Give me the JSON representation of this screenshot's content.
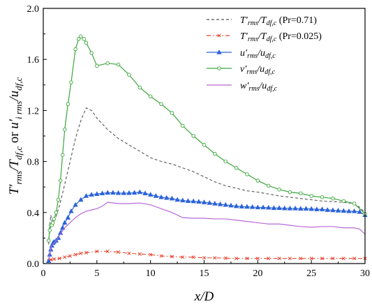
{
  "chart_data": {
    "type": "line",
    "xlabel": "x/D",
    "ylabel": "T'rms/Tdf,c or u'i rms/udf,c",
    "xlim": [
      0,
      30
    ],
    "ylim": [
      0,
      2.0
    ],
    "xticks": [
      0,
      5,
      10,
      15,
      20,
      25,
      30
    ],
    "xtick_labels": [
      "0",
      "5",
      "10",
      "15",
      "20",
      "25",
      "30"
    ],
    "yticks": [
      0,
      0.4,
      0.8,
      1.2,
      1.6,
      2.0
    ],
    "ytick_labels": [
      "0.0",
      "0.4",
      "0.8",
      "1.2",
      "1.6",
      "2.0"
    ],
    "grid": false,
    "legend_position": "top-right",
    "series": [
      {
        "name": "T'rms/Tdf,c (Pr=0.71)",
        "legend": {
          "main": "T′",
          "sub1": "rms",
          "mid": "/T",
          "sub2": "df,c",
          "suffix": " (Pr=0.71)"
        },
        "color": "#555555",
        "line": "dashed",
        "marker": "none",
        "x": [
          0.5,
          0.6,
          0.7,
          0.8,
          0.9,
          1.0,
          1.2,
          1.5,
          2.0,
          2.5,
          3.0,
          3.5,
          4.0,
          4.5,
          5.0,
          6.0,
          7.0,
          8.0,
          9.0,
          10.0,
          11.0,
          12.0,
          13.0,
          14.0,
          15.0,
          16.0,
          17.0,
          18.0,
          19.0,
          20.0,
          22.0,
          24.0,
          26.0,
          28.0,
          29.0,
          29.5,
          30.0
        ],
        "y": [
          0.15,
          0.3,
          0.38,
          0.34,
          0.3,
          0.33,
          0.37,
          0.45,
          0.62,
          0.8,
          0.98,
          1.12,
          1.22,
          1.2,
          1.14,
          1.05,
          0.98,
          0.93,
          0.88,
          0.83,
          0.8,
          0.78,
          0.75,
          0.72,
          0.68,
          0.64,
          0.61,
          0.59,
          0.57,
          0.56,
          0.53,
          0.51,
          0.49,
          0.48,
          0.47,
          0.44,
          0.4
        ]
      },
      {
        "name": "T'rms/Tdf,c (Pr=0.025)",
        "legend": {
          "main": "T′",
          "sub1": "rms",
          "mid": "/T",
          "sub2": "df,c",
          "suffix": " (Pr=0.025)"
        },
        "color": "#e8442e",
        "line": "dashdot",
        "marker": "x",
        "x": [
          0.5,
          0.7,
          1.0,
          1.5,
          2.0,
          2.5,
          3.0,
          3.5,
          4.0,
          5.0,
          6.0,
          7.0,
          8.0,
          9.0,
          10.0,
          11.0,
          12.0,
          13.0,
          14.0,
          15.0,
          16.0,
          17.0,
          18.0,
          19.0,
          20.0,
          21.0,
          22.0,
          23.0,
          24.0,
          25.0,
          26.0,
          27.0,
          28.0,
          29.0,
          30.0
        ],
        "y": [
          0.02,
          0.03,
          0.035,
          0.04,
          0.05,
          0.06,
          0.07,
          0.08,
          0.085,
          0.095,
          0.095,
          0.09,
          0.08,
          0.075,
          0.07,
          0.06,
          0.055,
          0.05,
          0.05,
          0.045,
          0.045,
          0.042,
          0.04,
          0.04,
          0.04,
          0.04,
          0.04,
          0.04,
          0.04,
          0.04,
          0.04,
          0.04,
          0.04,
          0.04,
          0.04
        ]
      },
      {
        "name": "u'rms/udf,c",
        "legend": {
          "main": "u′",
          "sub1": "rms",
          "mid": "/u",
          "sub2": "df,c",
          "suffix": ""
        },
        "color": "#2b63d9",
        "line": "solid",
        "marker": "triangle",
        "x": [
          0.5,
          0.6,
          0.7,
          0.8,
          0.9,
          1.0,
          1.2,
          1.4,
          1.6,
          1.8,
          2.0,
          2.3,
          2.6,
          3.0,
          3.5,
          4.0,
          4.5,
          5.0,
          5.5,
          6.0,
          6.5,
          7.0,
          7.5,
          8.0,
          8.5,
          9.0,
          9.5,
          10.0,
          10.5,
          11.0,
          11.5,
          12.0,
          12.5,
          13.0,
          13.5,
          14.0,
          14.5,
          15.0,
          15.5,
          16.0,
          16.5,
          17.0,
          17.5,
          18.0,
          18.5,
          19.0,
          19.5,
          20.0,
          20.5,
          21.0,
          21.5,
          22.0,
          22.5,
          23.0,
          23.5,
          24.0,
          24.5,
          25.0,
          25.5,
          26.0,
          26.5,
          27.0,
          27.5,
          28.0,
          28.5,
          29.0,
          29.5,
          30.0
        ],
        "y": [
          0.02,
          0.07,
          0.11,
          0.14,
          0.16,
          0.17,
          0.18,
          0.2,
          0.24,
          0.28,
          0.32,
          0.36,
          0.41,
          0.46,
          0.5,
          0.53,
          0.54,
          0.545,
          0.55,
          0.555,
          0.555,
          0.553,
          0.552,
          0.553,
          0.555,
          0.56,
          0.55,
          0.54,
          0.53,
          0.52,
          0.515,
          0.51,
          0.5,
          0.495,
          0.49,
          0.488,
          0.485,
          0.48,
          0.475,
          0.47,
          0.465,
          0.46,
          0.455,
          0.45,
          0.447,
          0.445,
          0.443,
          0.44,
          0.44,
          0.438,
          0.435,
          0.435,
          0.433,
          0.432,
          0.432,
          0.43,
          0.43,
          0.428,
          0.425,
          0.425,
          0.42,
          0.418,
          0.415,
          0.413,
          0.41,
          0.41,
          0.405,
          0.38
        ]
      },
      {
        "name": "v'rms/udf,c",
        "legend": {
          "main": "v′",
          "sub1": "rms",
          "mid": "/u",
          "sub2": "df,c",
          "suffix": ""
        },
        "color": "#3aa63a",
        "line": "solid",
        "marker": "circle",
        "x": [
          0.5,
          0.6,
          0.7,
          0.8,
          0.9,
          1.0,
          1.2,
          1.4,
          1.6,
          1.8,
          2.0,
          2.3,
          2.6,
          3.0,
          3.3,
          3.5,
          3.8,
          4.0,
          4.5,
          5.0,
          6.0,
          7.0,
          8.0,
          9.0,
          10.0,
          11.0,
          12.0,
          13.0,
          14.0,
          15.0,
          16.0,
          17.0,
          18.0,
          19.0,
          20.0,
          21.0,
          22.0,
          23.0,
          24.0,
          25.0,
          26.0,
          27.0,
          28.0,
          29.0,
          30.0
        ],
        "y": [
          0.18,
          0.26,
          0.3,
          0.3,
          0.32,
          0.35,
          0.4,
          0.5,
          0.65,
          0.85,
          1.05,
          1.25,
          1.42,
          1.68,
          1.76,
          1.78,
          1.76,
          1.73,
          1.65,
          1.55,
          1.57,
          1.56,
          1.48,
          1.38,
          1.31,
          1.25,
          1.18,
          1.08,
          1.0,
          0.93,
          0.86,
          0.8,
          0.75,
          0.7,
          0.65,
          0.61,
          0.58,
          0.56,
          0.55,
          0.53,
          0.52,
          0.51,
          0.49,
          0.47,
          0.39
        ]
      },
      {
        "name": "w'rms/udf,c",
        "legend": {
          "main": "w′",
          "sub1": "rms",
          "mid": "/u",
          "sub2": "df,c",
          "suffix": ""
        },
        "color": "#b768d8",
        "line": "solid",
        "marker": "none",
        "x": [
          0.5,
          0.6,
          0.7,
          0.8,
          0.9,
          1.0,
          1.2,
          1.5,
          2.0,
          2.5,
          3.0,
          3.5,
          4.0,
          4.5,
          5.0,
          5.5,
          6.0,
          7.0,
          8.0,
          9.0,
          10.0,
          11.0,
          12.0,
          13.0,
          14.0,
          15.0,
          16.0,
          17.0,
          18.0,
          19.0,
          20.0,
          21.0,
          22.0,
          23.0,
          24.0,
          25.0,
          26.0,
          27.0,
          28.0,
          29.0,
          29.5,
          30.0
        ],
        "y": [
          0.03,
          0.08,
          0.12,
          0.14,
          0.15,
          0.16,
          0.18,
          0.22,
          0.28,
          0.32,
          0.36,
          0.39,
          0.41,
          0.42,
          0.43,
          0.45,
          0.48,
          0.47,
          0.47,
          0.475,
          0.46,
          0.43,
          0.4,
          0.36,
          0.355,
          0.355,
          0.35,
          0.35,
          0.34,
          0.33,
          0.32,
          0.31,
          0.31,
          0.3,
          0.29,
          0.285,
          0.29,
          0.29,
          0.28,
          0.28,
          0.27,
          0.23
        ]
      }
    ]
  }
}
